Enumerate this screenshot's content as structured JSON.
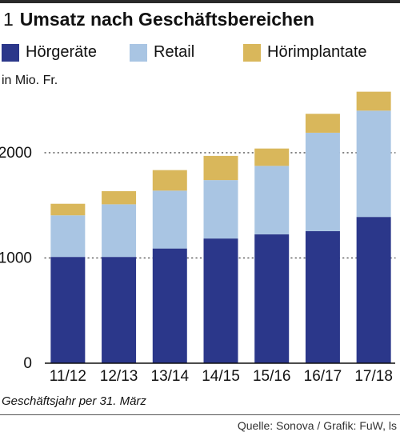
{
  "header": {
    "number": "1",
    "title": "Umsatz nach Geschäftsbereichen"
  },
  "unit": "in Mio. Fr.",
  "footnote": "Geschäftsjahr per 31. März",
  "source": "Quelle: Sonova / Grafik: FuW, ls",
  "colors": {
    "hoergeraete": "#2b378a",
    "retail": "#a9c5e3",
    "hoerimplantate": "#d9b75b"
  },
  "chart_data": {
    "type": "bar",
    "stacked": true,
    "title": "Umsatz nach Geschäftsbereichen",
    "ylabel": "in Mio. Fr.",
    "xlabel": "Geschäftsjahr per 31. März",
    "categories": [
      "11/12",
      "12/13",
      "13/14",
      "14/15",
      "15/16",
      "16/17",
      "17/18"
    ],
    "series": [
      {
        "name": "Hörgeräte",
        "values": [
          1010,
          1010,
          1090,
          1185,
          1225,
          1255,
          1390
        ]
      },
      {
        "name": "Retail",
        "values": [
          395,
          500,
          550,
          555,
          650,
          935,
          1010
        ]
      },
      {
        "name": "Hörimplantate",
        "values": [
          110,
          125,
          195,
          230,
          165,
          180,
          180
        ]
      }
    ],
    "ylim": [
      0,
      2600
    ],
    "yticks": [
      0,
      1000,
      2000
    ],
    "grid": "dotted",
    "legend": "top"
  }
}
